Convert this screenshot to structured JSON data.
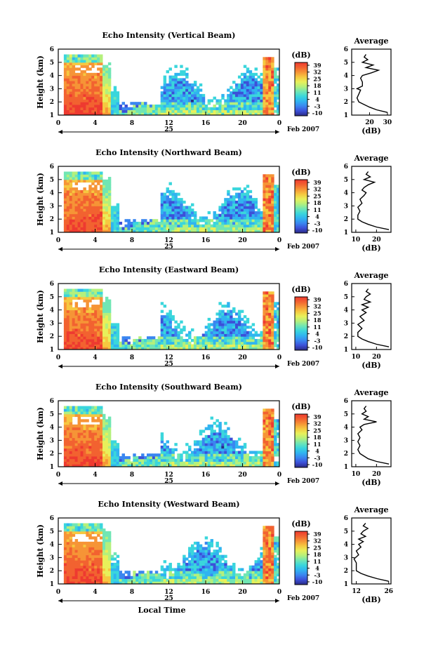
{
  "chart_data": {
    "type": "heatmap",
    "x_axis": {
      "ticks": [
        "0",
        "4",
        "8",
        "12",
        "16",
        "20",
        "0"
      ],
      "tick_hours": [
        0,
        4,
        8,
        12,
        16,
        20,
        24
      ],
      "xlim_hours": [
        0,
        24
      ],
      "date_label": "25",
      "month_label": "Feb 2007",
      "xlabel": "Local Time"
    },
    "y_axis": {
      "ylabel": "Height (km)",
      "ticks": [
        "1",
        "2",
        "3",
        "4",
        "5",
        "6"
      ],
      "ylim_km": [
        1,
        6
      ]
    },
    "colorbar": {
      "title": "(dB)",
      "ticks": [
        "39",
        "32",
        "25",
        "18",
        "11",
        "4",
        "-3",
        "-10"
      ],
      "range_db": [
        -10,
        39
      ],
      "colors": [
        "#2a2a84",
        "#3c50d8",
        "#3a86f0",
        "#30b4f0",
        "#3ad6dc",
        "#70e6b4",
        "#b4f07c",
        "#e8f05a",
        "#f6c840",
        "#f69436",
        "#f26230",
        "#ee3a30"
      ]
    },
    "average_label": "Average",
    "average_xlabel": "(dB)",
    "panels": [
      {
        "title": "Echo Intensity (Vertical Beam)",
        "avg_xticks": [
          "20",
          "30"
        ],
        "avg_xtick_vals": [
          20,
          30
        ],
        "avg_xlim": [
          10,
          32
        ],
        "avg_heights_km": [
          1.2,
          1.4,
          1.6,
          1.8,
          2.0,
          2.3,
          2.6,
          2.9,
          3.0,
          3.2,
          3.5,
          3.8,
          4.0,
          4.2,
          4.4,
          4.6,
          4.8,
          5.0,
          5.2,
          5.4,
          5.6
        ],
        "avg_db": [
          30,
          24,
          20,
          17,
          14,
          13,
          14,
          15,
          13,
          16,
          16,
          15,
          16,
          21,
          25,
          18,
          22,
          16,
          19,
          17,
          18
        ]
      },
      {
        "title": "Echo Intensity (Northward Beam)",
        "avg_xticks": [
          "10",
          "20"
        ],
        "avg_xtick_vals": [
          10,
          20
        ],
        "avg_xlim": [
          8,
          27
        ],
        "avg_heights_km": [
          1.2,
          1.4,
          1.6,
          1.8,
          2.0,
          2.3,
          2.6,
          2.9,
          3.2,
          3.5,
          3.8,
          4.0,
          4.2,
          4.4,
          4.6,
          4.8,
          5.0,
          5.2,
          5.4,
          5.6
        ],
        "avg_db": [
          26,
          20,
          16,
          13,
          11,
          11,
          12,
          11,
          13,
          12,
          14,
          15,
          13,
          14,
          16,
          19,
          14,
          17,
          15,
          16
        ]
      },
      {
        "title": "Echo Intensity (Eastward Beam)",
        "avg_xticks": [
          "10",
          "20"
        ],
        "avg_xtick_vals": [
          10,
          20
        ],
        "avg_xlim": [
          8,
          27
        ],
        "avg_heights_km": [
          1.2,
          1.4,
          1.6,
          1.8,
          2.0,
          2.3,
          2.6,
          2.9,
          3.2,
          3.5,
          3.8,
          4.0,
          4.2,
          4.4,
          4.6,
          4.8,
          5.0,
          5.2,
          5.4,
          5.6
        ],
        "avg_db": [
          26,
          20,
          16,
          13,
          11,
          11,
          13,
          11,
          14,
          12,
          15,
          13,
          16,
          13,
          17,
          14,
          15,
          17,
          15,
          16
        ]
      },
      {
        "title": "Echo Intensity (Southward Beam)",
        "avg_xticks": [
          "10",
          "20"
        ],
        "avg_xtick_vals": [
          10,
          20
        ],
        "avg_xlim": [
          8,
          27
        ],
        "avg_heights_km": [
          1.2,
          1.4,
          1.6,
          1.8,
          2.0,
          2.3,
          2.6,
          2.9,
          3.2,
          3.5,
          3.8,
          4.0,
          4.2,
          4.4,
          4.6,
          4.8,
          5.0,
          5.2,
          5.4,
          5.6
        ],
        "avg_db": [
          26,
          20,
          16,
          14,
          12,
          11,
          12,
          11,
          12,
          11,
          13,
          12,
          14,
          20,
          14,
          16,
          13,
          15,
          14,
          15
        ]
      },
      {
        "title": "Echo Intensity (Westward Beam)",
        "avg_xticks": [
          "12",
          "26"
        ],
        "avg_xtick_vals": [
          12,
          26
        ],
        "avg_xlim": [
          10,
          27
        ],
        "avg_heights_km": [
          1.2,
          1.4,
          1.6,
          1.8,
          2.0,
          2.3,
          2.6,
          2.9,
          3.2,
          3.5,
          3.8,
          4.0,
          4.2,
          4.4,
          4.6,
          4.8,
          5.0,
          5.2,
          5.4,
          5.6
        ],
        "avg_db": [
          26,
          21,
          17,
          14,
          12,
          12,
          12,
          11,
          13,
          12,
          14,
          13,
          15,
          13,
          16,
          14,
          15,
          17,
          15,
          16
        ]
      }
    ]
  }
}
